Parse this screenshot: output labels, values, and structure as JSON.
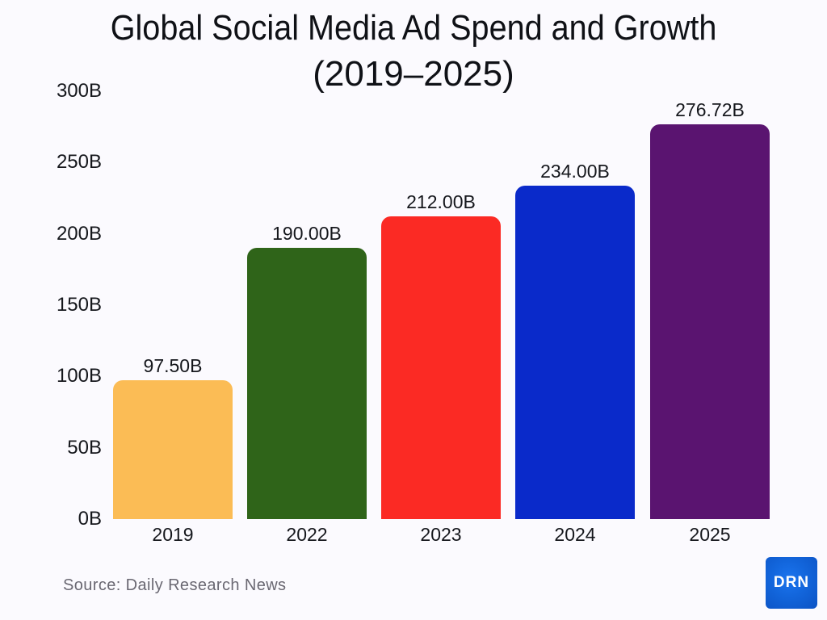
{
  "title": {
    "line1": "Global Social Media Ad Spend and Growth",
    "line2": "(2019–2025)"
  },
  "chart_data": {
    "type": "bar",
    "title": "Global Social Media Ad Spend and Growth (2019–2025)",
    "categories": [
      "2019",
      "2022",
      "2023",
      "2024",
      "2025"
    ],
    "values": [
      97.5,
      190.0,
      212.0,
      234.0,
      276.72
    ],
    "value_labels": [
      "97.50B",
      "190.00B",
      "212.00B",
      "234.00B",
      "276.72B"
    ],
    "bar_colors": [
      "#FBBC55",
      "#2F6419",
      "#FB2A24",
      "#0A2ACA",
      "#5A1470"
    ],
    "xlabel": "",
    "ylabel": "",
    "y_ticks": [
      "0B",
      "50B",
      "100B",
      "150B",
      "200B",
      "250B",
      "300B"
    ],
    "y_tick_values": [
      0,
      50,
      100,
      150,
      200,
      250,
      300
    ],
    "ylim": [
      0,
      300
    ],
    "unit": "B (billions USD)",
    "grid": false,
    "legend": "none"
  },
  "footer": {
    "source": "Source: Daily Research News",
    "logo_text": "DRN",
    "logo_color": "#1265DB"
  },
  "colors": {
    "background": "#FBFAFE",
    "title_text": "#0F1116",
    "axis_text": "#15171C",
    "source_text": "#6A6872"
  }
}
